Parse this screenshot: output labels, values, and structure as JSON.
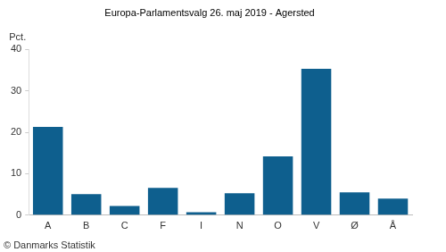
{
  "chart_data": {
    "type": "bar",
    "title": "Europa-Parlamentsvalg 26. maj 2019 - Agersted",
    "ylabel": "Pct.",
    "annotation": "© Danmarks Statistik",
    "categories": [
      "A",
      "B",
      "C",
      "F",
      "I",
      "N",
      "O",
      "V",
      "Ø",
      "Å"
    ],
    "values": [
      21.3,
      5.1,
      2.2,
      6.6,
      0.7,
      5.3,
      14.2,
      35.3,
      5.5,
      4.0
    ],
    "color": "#0e5f8e",
    "ylim": [
      0,
      40
    ],
    "yticks": [
      0,
      10,
      20,
      30,
      40
    ],
    "grid": false
  }
}
